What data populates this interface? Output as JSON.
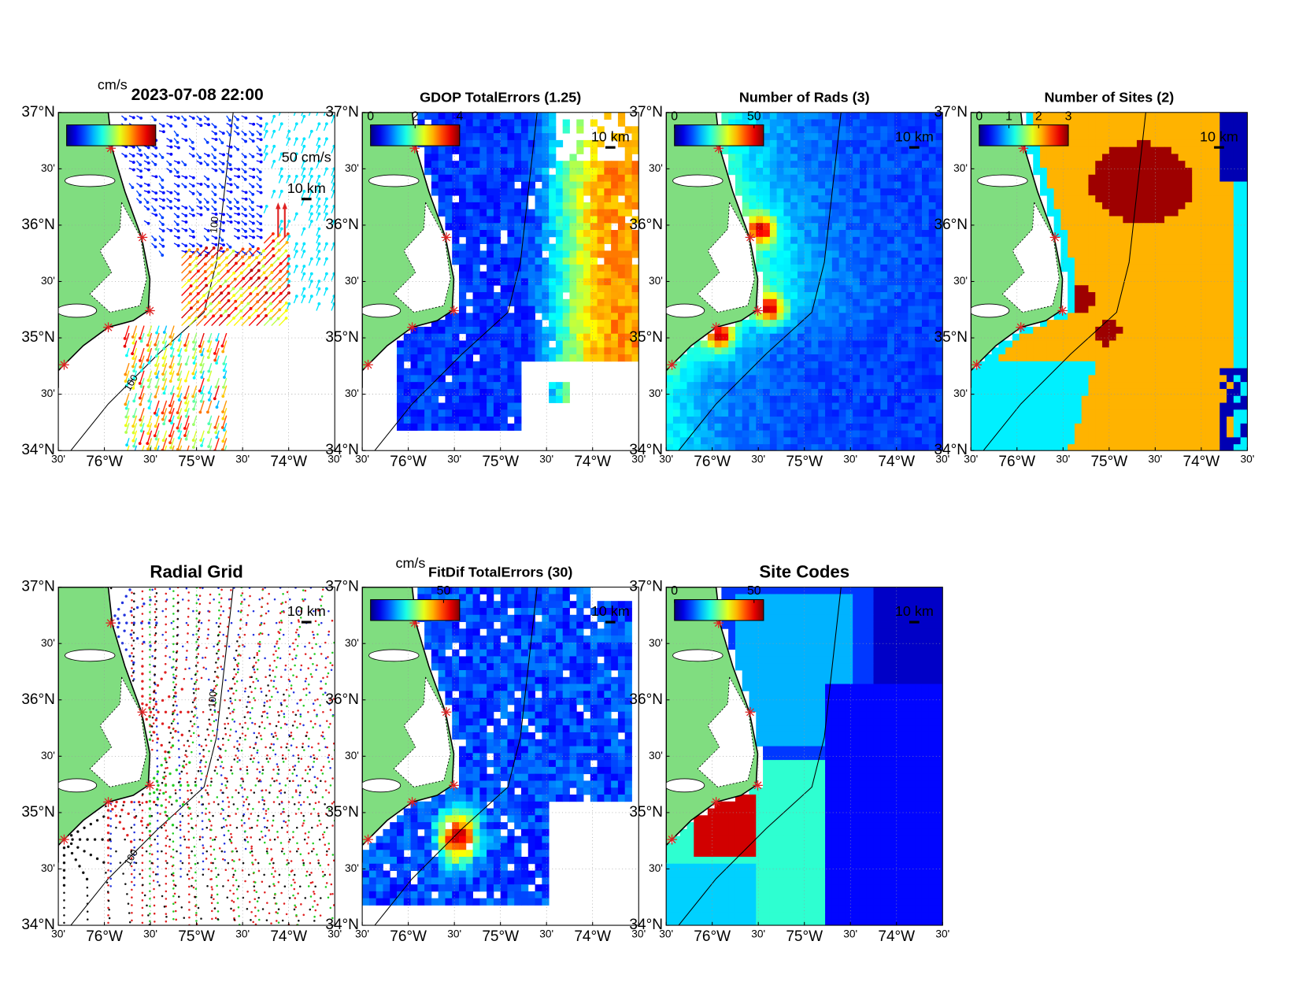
{
  "figure": {
    "xlim": [
      -76.5,
      -73.5
    ],
    "ylim": [
      34,
      37
    ],
    "lon_ticks": [
      {
        "value": -76.5,
        "label": "30'"
      },
      {
        "value": -76,
        "label": "76°W"
      },
      {
        "value": -75.5,
        "label": "30'"
      },
      {
        "value": -75,
        "label": "75°W"
      },
      {
        "value": -74.5,
        "label": "30'"
      },
      {
        "value": -74,
        "label": "74°W"
      },
      {
        "value": -73.5,
        "label": "30'"
      }
    ],
    "lat_ticks": [
      {
        "value": 34,
        "label": "34°N"
      },
      {
        "value": 34.5,
        "label": "30'"
      },
      {
        "value": 35,
        "label": "35°N"
      },
      {
        "value": 35.5,
        "label": "30'"
      },
      {
        "value": 36,
        "label": "36°N"
      },
      {
        "value": 36.5,
        "label": "30'"
      },
      {
        "value": 37,
        "label": "37°N"
      }
    ],
    "panels": [
      {
        "title": "2023-07-08 22:00",
        "units": "cm/s",
        "legend_label": "50 cm/s",
        "scale_label": "10 km",
        "contour_label": "100"
      },
      {
        "title": "GDOP TotalErrors (1.25)",
        "scale_label": "10 km",
        "cbar": {
          "lim": [
            0,
            4
          ],
          "ticks": [
            0,
            2,
            4
          ]
        }
      },
      {
        "title": "Number of Rads (3)",
        "scale_label": "10 km",
        "cbar": {
          "lim": [
            0,
            56
          ],
          "ticks": [
            0,
            50
          ]
        }
      },
      {
        "title": "Number of Sites (2)",
        "scale_label": "10 km",
        "cbar": {
          "lim": [
            0,
            3
          ],
          "ticks": [
            0,
            1,
            2,
            3
          ]
        }
      },
      {
        "title": "Radial Grid",
        "scale_label": "10 km",
        "contour_label": "100"
      },
      {
        "title": "FitDif TotalErrors (30)",
        "units": "cm/s",
        "scale_label": "10 km",
        "cbar": {
          "lim": [
            0,
            61
          ],
          "ticks": [
            50
          ]
        }
      },
      {
        "title": "Site Codes",
        "scale_label": "10 km",
        "cbar": {
          "lim": [
            0,
            56
          ],
          "ticks": [
            0,
            50
          ]
        }
      }
    ]
  }
}
